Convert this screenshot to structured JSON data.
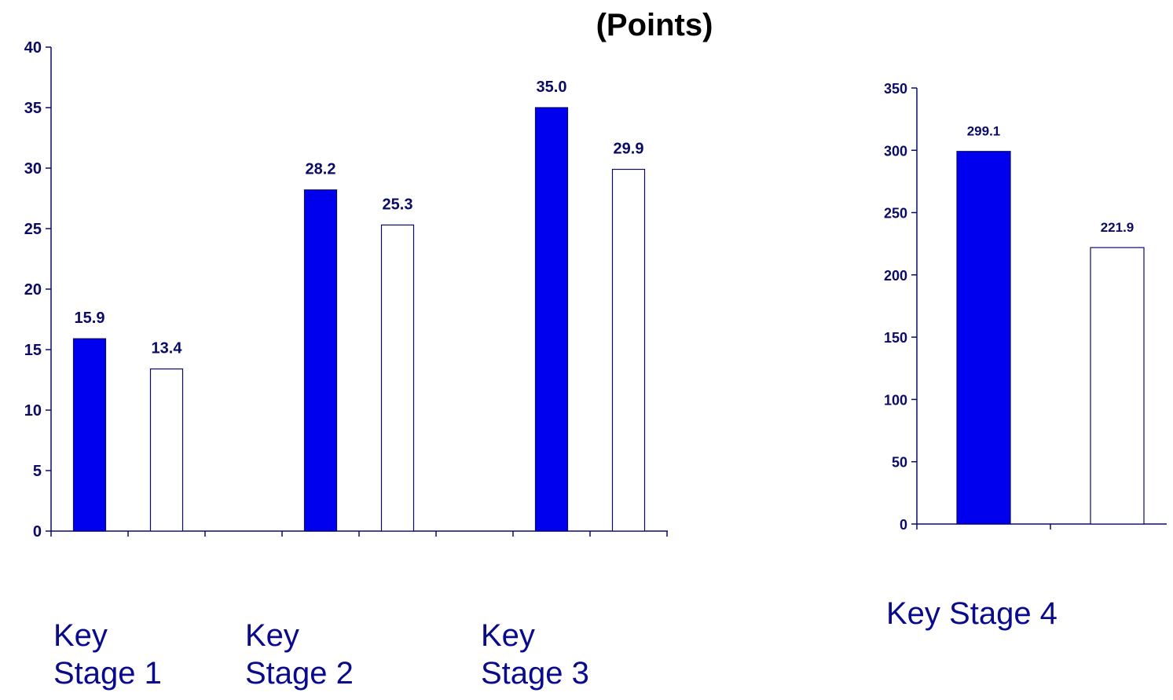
{
  "title": "(Points)",
  "colors": {
    "series_a": "#0000ee",
    "series_b": "#ffffff",
    "axis": "#0b0b66",
    "label": "#0a0a8c"
  },
  "chart_data": [
    {
      "type": "bar",
      "categories": [
        "Key Stage 1",
        "Key Stage 2",
        "Key Stage 3"
      ],
      "category_labels": [
        "Key\nStage 1",
        "Key\nStage 2",
        "Key\nStage 3"
      ],
      "series": [
        {
          "values": [
            15.9,
            28.2,
            35.0
          ],
          "value_labels": [
            "15.9",
            "28.2",
            "35.0"
          ],
          "color": "#0000ee"
        },
        {
          "values": [
            13.4,
            25.3,
            29.9
          ],
          "value_labels": [
            "13.4",
            "25.3",
            "29.9"
          ],
          "color": "#ffffff"
        }
      ],
      "ylim": [
        0,
        40
      ],
      "yticks": [
        "0",
        "5",
        "10",
        "15",
        "20",
        "25",
        "30",
        "35",
        "40"
      ],
      "grid": false,
      "title": "(Points)"
    },
    {
      "type": "bar",
      "categories": [
        "Key Stage 4"
      ],
      "category_labels": [
        "Key Stage 4"
      ],
      "series": [
        {
          "values": [
            299.1
          ],
          "value_labels": [
            "299.1"
          ],
          "color": "#0000ee"
        },
        {
          "values": [
            221.9
          ],
          "value_labels": [
            "221.9"
          ],
          "color": "#ffffff"
        }
      ],
      "ylim": [
        0,
        350
      ],
      "yticks": [
        "0",
        "50",
        "100",
        "150",
        "200",
        "250",
        "300",
        "350"
      ],
      "grid": false
    }
  ]
}
